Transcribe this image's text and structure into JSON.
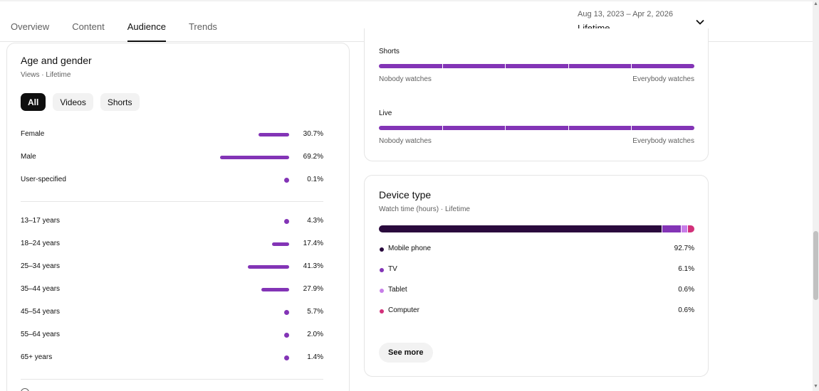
{
  "tabs": [
    {
      "label": "Overview",
      "active": false
    },
    {
      "label": "Content",
      "active": false
    },
    {
      "label": "Audience",
      "active": true
    },
    {
      "label": "Trends",
      "active": false
    }
  ],
  "date_range": {
    "dates": "Aug 13, 2023 – Apr 2, 2026",
    "label": "Lifetime",
    "icon": "chevron-down-icon"
  },
  "age_gender": {
    "title": "Age and gender",
    "subtitle": "Views · Lifetime",
    "chips": [
      {
        "label": "All",
        "selected": true
      },
      {
        "label": "Videos",
        "selected": false
      },
      {
        "label": "Shorts",
        "selected": false
      }
    ],
    "gender": [
      {
        "label": "Female",
        "pct": "30.7%",
        "value": 30.7
      },
      {
        "label": "Male",
        "pct": "69.2%",
        "value": 69.2
      },
      {
        "label": "User-specified",
        "pct": "0.1%",
        "value": 0.1
      }
    ],
    "age": [
      {
        "label": "13–17 years",
        "pct": "4.3%",
        "value": 4.3
      },
      {
        "label": "18–24 years",
        "pct": "17.4%",
        "value": 17.4
      },
      {
        "label": "25–34 years",
        "pct": "41.3%",
        "value": 41.3
      },
      {
        "label": "35–44 years",
        "pct": "27.9%",
        "value": 27.9
      },
      {
        "label": "45–54 years",
        "pct": "5.7%",
        "value": 5.7
      },
      {
        "label": "55–64 years",
        "pct": "2.0%",
        "value": 2.0
      },
      {
        "label": "65+ years",
        "pct": "1.4%",
        "value": 1.4
      }
    ],
    "accent": "#8334b6"
  },
  "watch_sections": [
    {
      "label": "Shorts",
      "left": "Nobody watches",
      "right": "Everybody watches"
    },
    {
      "label": "Live",
      "left": "Nobody watches",
      "right": "Everybody watches"
    }
  ],
  "device": {
    "title": "Device type",
    "subtitle": "Watch time (hours) · Lifetime",
    "items": [
      {
        "name": "Mobile phone",
        "pct": "92.7%",
        "value": 92.7,
        "color": "#2a0a3d"
      },
      {
        "name": "TV",
        "pct": "6.1%",
        "value": 6.1,
        "color": "#8334b6"
      },
      {
        "name": "Tablet",
        "pct": "0.6%",
        "value": 0.6,
        "color": "#c77ee8"
      },
      {
        "name": "Computer",
        "pct": "0.6%",
        "value": 0.6,
        "color": "#d2307a"
      }
    ],
    "see_more": "See more"
  }
}
